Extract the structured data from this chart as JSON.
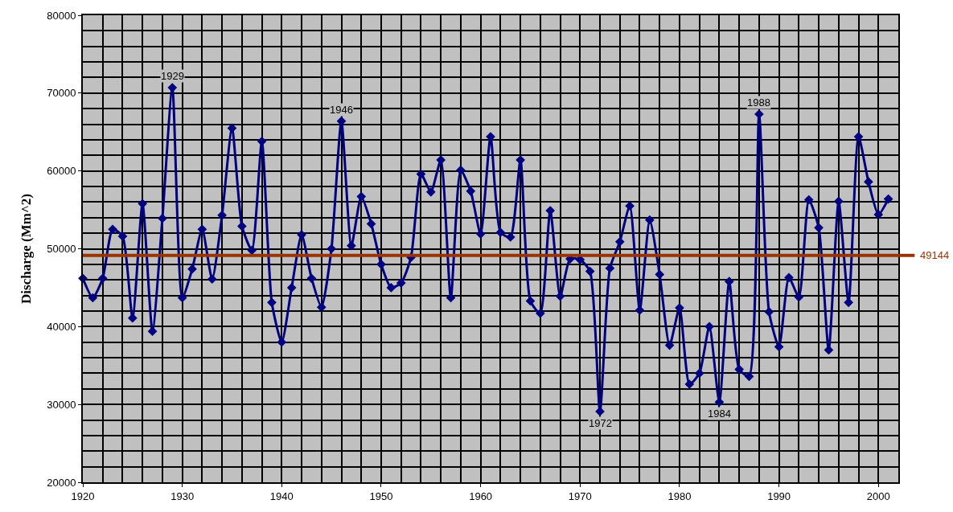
{
  "chart_data": {
    "type": "line",
    "ylabel": "Discharge (Mm^2)",
    "x": [
      1920,
      1921,
      1922,
      1923,
      1924,
      1925,
      1926,
      1927,
      1928,
      1929,
      1930,
      1931,
      1932,
      1933,
      1934,
      1935,
      1936,
      1937,
      1938,
      1939,
      1940,
      1941,
      1942,
      1943,
      1944,
      1945,
      1946,
      1947,
      1948,
      1949,
      1950,
      1951,
      1952,
      1953,
      1954,
      1955,
      1956,
      1957,
      1958,
      1959,
      1960,
      1961,
      1962,
      1963,
      1964,
      1965,
      1966,
      1967,
      1968,
      1969,
      1970,
      1971,
      1972,
      1973,
      1974,
      1975,
      1976,
      1977,
      1978,
      1979,
      1980,
      1981,
      1982,
      1983,
      1984,
      1985,
      1986,
      1987,
      1988,
      1989,
      1990,
      1991,
      1992,
      1993,
      1994,
      1995,
      1996,
      1997,
      1998,
      1999,
      2000,
      2001
    ],
    "series": [
      {
        "color": "#000080",
        "values": [
          46200,
          43700,
          46200,
          52500,
          51600,
          41100,
          55800,
          39400,
          53900,
          70700,
          43700,
          47400,
          52500,
          46100,
          54300,
          65500,
          52900,
          49800,
          63800,
          43100,
          38000,
          45000,
          51800,
          46200,
          42500,
          50000,
          66400,
          50400,
          56700,
          53200,
          48000,
          45000,
          45600,
          48900,
          59600,
          57300,
          61400,
          43700,
          60100,
          57400,
          51900,
          64400,
          52100,
          51500,
          61400,
          43300,
          41700,
          54900,
          43900,
          48700,
          48600,
          47100,
          29100,
          47500,
          50900,
          55500,
          42100,
          53700,
          46700,
          37600,
          42400,
          32600,
          34000,
          40000,
          30300,
          45800,
          34500,
          33600,
          67300,
          41900,
          37400,
          46300,
          43800,
          56300,
          52700,
          37000,
          56100,
          43100,
          64400,
          58600,
          54400,
          56400
        ]
      }
    ],
    "xlim": [
      1920,
      2002
    ],
    "xticks": [
      1920,
      1930,
      1940,
      1950,
      1960,
      1970,
      1980,
      1990,
      2000
    ],
    "ylim": [
      20000,
      80000
    ],
    "yticks": [
      20000,
      30000,
      40000,
      50000,
      60000,
      70000,
      80000
    ],
    "grid": true,
    "marker": "diamond",
    "line_style": "solid",
    "ref_lines": [
      {
        "axis": "y",
        "value": 49144,
        "label": "49144",
        "color": "#993300"
      }
    ],
    "annotations": [
      {
        "text": "1929",
        "x": 1929,
        "y": 70700
      },
      {
        "text": "1946",
        "x": 1946,
        "y": 66400
      },
      {
        "text": "1972",
        "x": 1972,
        "y": 29100
      },
      {
        "text": "1984",
        "x": 1984,
        "y": 30300
      },
      {
        "text": "1988",
        "x": 1988,
        "y": 67300
      }
    ]
  }
}
